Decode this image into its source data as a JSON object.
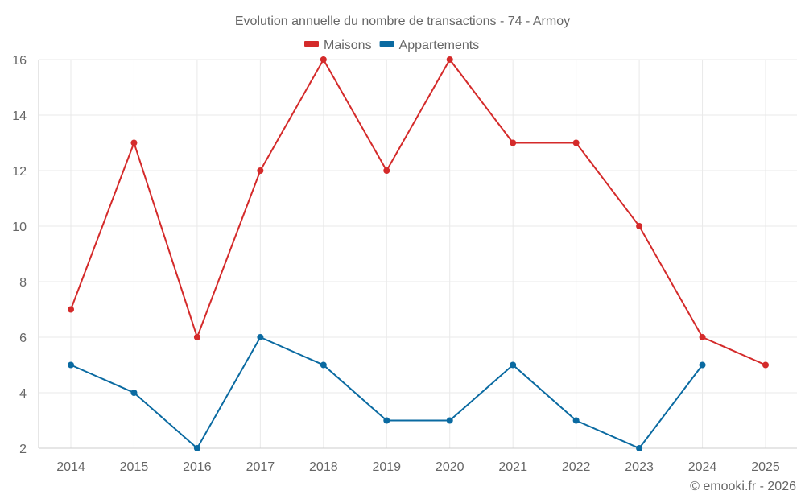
{
  "chart_data": {
    "type": "line",
    "title": "Evolution annuelle du nombre de transactions - 74 - Armoy",
    "xlabel": "",
    "ylabel": "",
    "categories": [
      "2014",
      "2015",
      "2016",
      "2017",
      "2018",
      "2019",
      "2020",
      "2021",
      "2022",
      "2023",
      "2024",
      "2025"
    ],
    "series": [
      {
        "name": "Maisons",
        "color": "#d42a2a",
        "values": [
          7,
          13,
          6,
          12,
          16,
          12,
          16,
          13,
          13,
          10,
          6,
          5
        ]
      },
      {
        "name": "Appartements",
        "color": "#0a6aa1",
        "values": [
          5,
          4,
          2,
          6,
          5,
          3,
          3,
          5,
          3,
          2,
          5,
          null
        ]
      }
    ],
    "ylim": [
      2,
      16
    ],
    "yticks": [
      2,
      4,
      6,
      8,
      10,
      12,
      14,
      16
    ],
    "grid": true,
    "legend_position": "top-center",
    "credit": "© emooki.fr - 2026"
  }
}
